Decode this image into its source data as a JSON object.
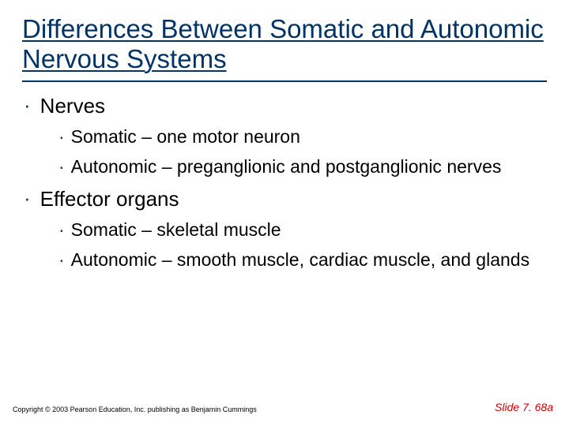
{
  "title": "Differences Between Somatic and Autonomic Nervous Systems",
  "colors": {
    "title_color": "#003366",
    "bullet_color": "#003366",
    "text_color": "#000000",
    "slide_number_color": "#d10000",
    "background": "#ffffff"
  },
  "typography": {
    "title_fontsize": 33,
    "level1_fontsize": 26,
    "level2_fontsize": 23,
    "footer_fontsize": 9,
    "slide_number_fontsize": 14,
    "font_family": "Arial"
  },
  "bullets": {
    "level1": [
      {
        "text": "Nerves",
        "children": [
          "Somatic – one motor neuron",
          "Autonomic – preganglionic and postganglionic nerves"
        ]
      },
      {
        "text": "Effector organs",
        "children": [
          "Somatic – skeletal muscle",
          "Autonomic – smooth muscle, cardiac muscle, and glands"
        ]
      }
    ]
  },
  "footer": {
    "copyright": "Copyright © 2003 Pearson Education, Inc. publishing as Benjamin Cummings",
    "slide_number": "Slide 7. 68a"
  }
}
